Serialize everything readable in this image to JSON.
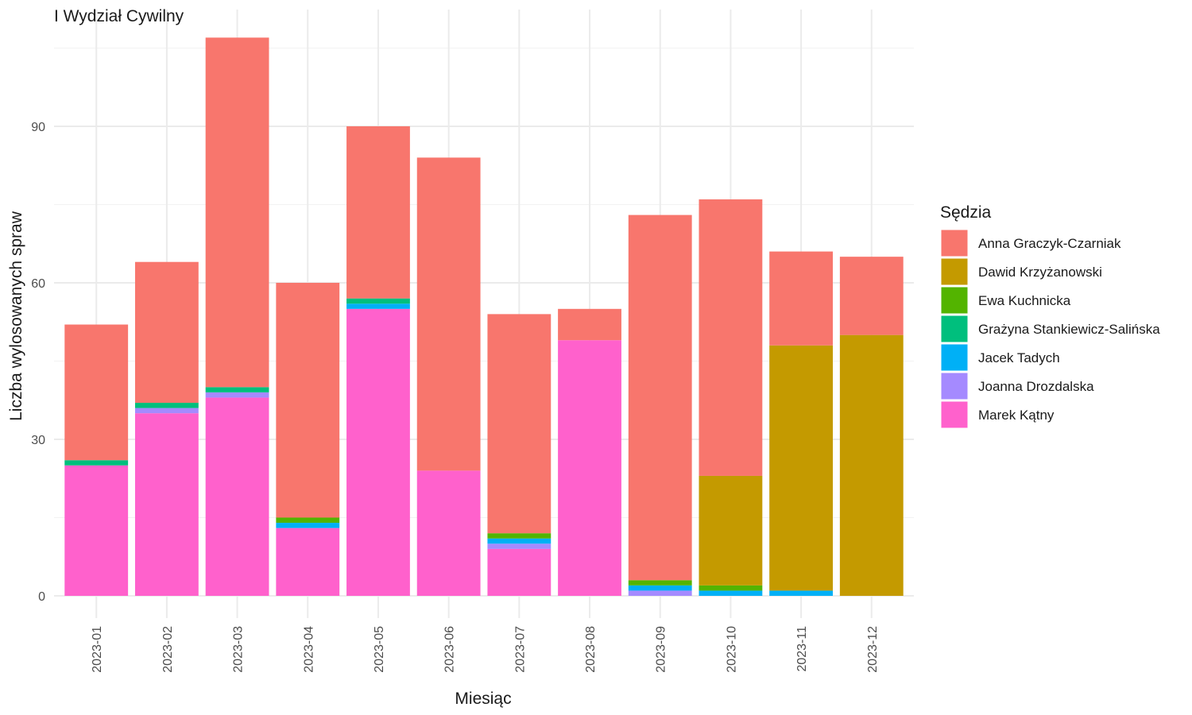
{
  "chart_data": {
    "type": "bar",
    "stacked": true,
    "title": "I Wydział Cywilny",
    "xlabel": "Miesiąc",
    "ylabel": "Liczba wylosowanych spraw",
    "ylim": [
      0,
      112
    ],
    "yticks": [
      0,
      30,
      60,
      90
    ],
    "grid": true,
    "legend_title": "Sędzia",
    "legend_position": "right",
    "categories": [
      "2023-01",
      "2023-02",
      "2023-03",
      "2023-04",
      "2023-05",
      "2023-06",
      "2023-07",
      "2023-08",
      "2023-09",
      "2023-10",
      "2023-11",
      "2023-12"
    ],
    "series": [
      {
        "name": "Marek Kątny",
        "color": "#FF61CC",
        "values": [
          25,
          35,
          38,
          13,
          55,
          24,
          9,
          49,
          0,
          0,
          0,
          0
        ]
      },
      {
        "name": "Joanna Drozdalska",
        "color": "#A58AFF",
        "values": [
          0,
          1,
          1,
          0,
          0,
          0,
          1,
          0,
          1,
          0,
          0,
          0
        ]
      },
      {
        "name": "Jacek Tadych",
        "color": "#00B0F6",
        "values": [
          0,
          0,
          0,
          1,
          1,
          0,
          1,
          0,
          1,
          1,
          1,
          0
        ]
      },
      {
        "name": "Grażyna Stankiewicz-Salińska",
        "color": "#00BF7D",
        "values": [
          1,
          1,
          1,
          0,
          1,
          0,
          0,
          0,
          0,
          0,
          0,
          0
        ]
      },
      {
        "name": "Ewa Kuchnicka",
        "color": "#53B400",
        "values": [
          0,
          0,
          0,
          1,
          0,
          0,
          1,
          0,
          1,
          1,
          0,
          0
        ]
      },
      {
        "name": "Dawid Krzyżanowski",
        "color": "#C49A00",
        "values": [
          0,
          0,
          0,
          0,
          0,
          0,
          0,
          0,
          0,
          21,
          47,
          50
        ]
      },
      {
        "name": "Anna Graczyk-Czarniak",
        "color": "#F8766D",
        "values": [
          26,
          27,
          67,
          45,
          33,
          60,
          42,
          6,
          70,
          53,
          18,
          15
        ]
      }
    ],
    "legend_order": [
      "Anna Graczyk-Czarniak",
      "Dawid Krzyżanowski",
      "Ewa Kuchnicka",
      "Grażyna Stankiewicz-Salińska",
      "Jacek Tadych",
      "Joanna Drozdalska",
      "Marek Kątny"
    ]
  }
}
